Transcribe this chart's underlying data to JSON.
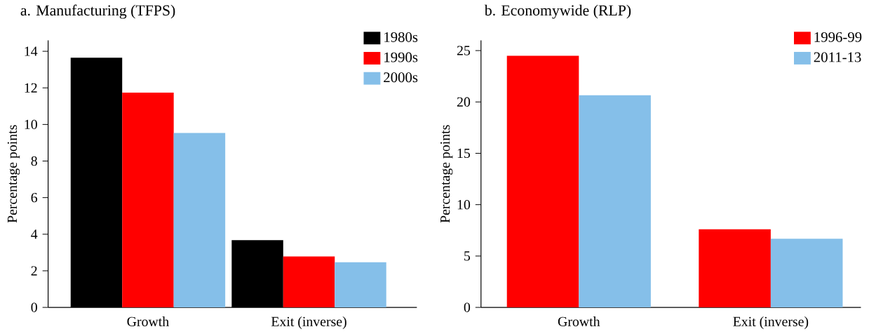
{
  "chart_data": [
    {
      "type": "bar",
      "title": "a. Manufacturing (TFPS)",
      "ylabel": "Percentage points",
      "categories": [
        "Growth",
        "Exit (inverse)"
      ],
      "series": [
        {
          "name": "1980s",
          "color": "#000000",
          "values": [
            13.65,
            3.68
          ]
        },
        {
          "name": "1990s",
          "color": "#ff0000",
          "values": [
            11.74,
            2.78
          ]
        },
        {
          "name": "2000s",
          "color": "#85bfe9",
          "values": [
            9.53,
            2.47
          ]
        }
      ],
      "ylim": [
        0,
        14.6
      ],
      "yticks": [
        0,
        2,
        4,
        6,
        8,
        10,
        12,
        14
      ],
      "legend": "top right"
    },
    {
      "type": "bar",
      "title": "b. Economywide (RLP)",
      "ylabel": "Percentage points",
      "categories": [
        "Growth",
        "Exit (inverse)"
      ],
      "series": [
        {
          "name": "1996-99",
          "color": "#ff0000",
          "values": [
            24.5,
            7.6
          ]
        },
        {
          "name": "2011-13",
          "color": "#85bfe9",
          "values": [
            20.65,
            6.69
          ]
        }
      ],
      "ylim": [
        0,
        26
      ],
      "yticks": [
        0,
        5,
        10,
        15,
        20,
        25
      ],
      "legend": "top right"
    }
  ]
}
